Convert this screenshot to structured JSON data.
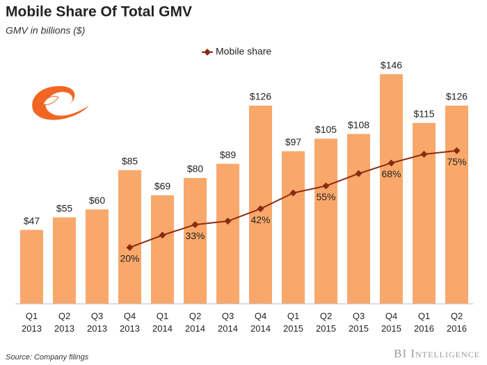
{
  "chart_data": {
    "type": "bar",
    "title": "Mobile Share Of Total GMV",
    "subtitle": "GMV in billions ($)",
    "source": "Source: Company filings",
    "brand": "BI Intelligence",
    "categories": [
      "Q1 2013",
      "Q2 2013",
      "Q3 2013",
      "Q4 2013",
      "Q1 2014",
      "Q2 2014",
      "Q3 2014",
      "Q4 2014",
      "Q1 2015",
      "Q2 2015",
      "Q3 2015",
      "Q4 2015",
      "Q1 2016",
      "Q2 2016"
    ],
    "series": [
      {
        "type": "bar",
        "color": "#f9a86b",
        "values": [
          47,
          55,
          60,
          85,
          69,
          80,
          89,
          126,
          97,
          105,
          108,
          146,
          115,
          126
        ],
        "value_labels": [
          "$47",
          "$55",
          "$60",
          "$85",
          "$69",
          "$80",
          "$89",
          "$126",
          "$97",
          "$105",
          "$108",
          "$146",
          "$115",
          "$126"
        ]
      },
      {
        "type": "line",
        "name": "Mobile share",
        "color": "#8b2a0f",
        "axis": "y2",
        "values": [
          null,
          null,
          null,
          20,
          27,
          33,
          35,
          42,
          51,
          55,
          62,
          68,
          73,
          75
        ],
        "value_labels": [
          null,
          null,
          null,
          "20%",
          null,
          "33%",
          null,
          "42%",
          null,
          "55%",
          null,
          "68%",
          null,
          "75%"
        ]
      }
    ],
    "ylim": [
      0,
      160
    ],
    "y2lim": [
      -12,
      131
    ],
    "legend": "top"
  }
}
